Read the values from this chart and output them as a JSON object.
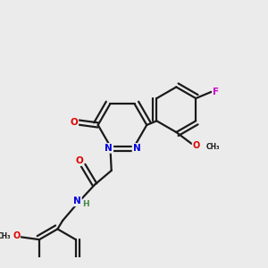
{
  "background_color": "#ebebeb",
  "bond_color": "#1a1a1a",
  "atom_colors": {
    "N": "#0000e0",
    "O": "#e00000",
    "F": "#cc00cc",
    "H": "#448844",
    "C": "#1a1a1a"
  },
  "lw": 1.6
}
